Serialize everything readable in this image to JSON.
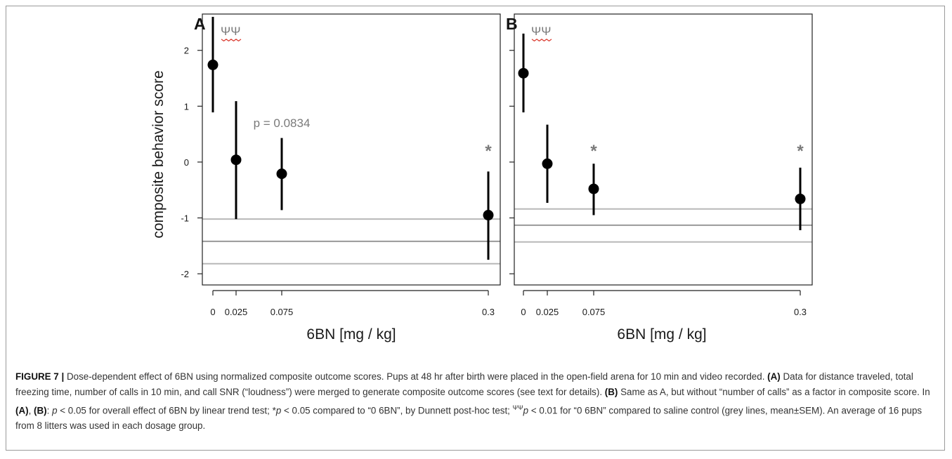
{
  "figure_label": "FIGURE 7 |",
  "caption": {
    "t1": " Dose-dependent effect of 6BN using normalized composite outcome scores. Pups at 48 hr after birth were placed in the open-field arena for 10 min and video recorded. ",
    "a1": "(A)",
    "t2": " Data for distance traveled, total freezing time, number of calls in 10 min, and call SNR (“loudness”) were merged to generate composite outcome scores (see text for details). ",
    "b1": "(B)",
    "t3": " Same as A, but without “number of calls” as a factor in composite score. In ",
    "a2": "(A)",
    "comma": ", ",
    "b2": "(B)",
    "t4": ": ",
    "p1": "p",
    "t5": " < 0.05 for overall effect of 6BN by linear trend test; *",
    "p2": "p",
    "t6": " < 0.05 compared to “0 6BN”, by Dunnett post-hoc test; ",
    "sup": "ΨΨ",
    "p3": "p",
    "t7": " < 0.01 for “0 6BN” compared to saline control (grey lines, mean±SEM). An average of 16 pups from 8 litters was used in each dosage group."
  },
  "chart_data": [
    {
      "type": "scatter",
      "panel_label": "A",
      "xlabel": "6BN [mg / kg]",
      "ylabel": "composite behavior score",
      "x_ticks": [
        0,
        0.025,
        0.075,
        0.3
      ],
      "x_tick_labels": [
        "0",
        "0.025",
        "0.075",
        "0.3"
      ],
      "y_ticks": [
        -2,
        -1,
        0,
        1,
        2
      ],
      "y_tick_labels": [
        "-2",
        "-1",
        "0",
        "1",
        "2"
      ],
      "ylim": [
        -2.2,
        2.65
      ],
      "points": [
        {
          "x": 0,
          "mean": 1.74,
          "lower": 0.89,
          "upper": 2.6
        },
        {
          "x": 0.025,
          "mean": 0.04,
          "lower": -1.02,
          "upper": 1.09
        },
        {
          "x": 0.075,
          "mean": -0.21,
          "lower": -0.86,
          "upper": 0.43
        },
        {
          "x": 0.3,
          "mean": -0.95,
          "lower": -1.75,
          "upper": -0.17
        }
      ],
      "saline_control": {
        "mean": -1.42,
        "lower": -1.82,
        "upper": -1.02
      },
      "annotations": [
        {
          "text": "ΨΨ",
          "x": 0,
          "y": 2.35
        },
        {
          "text": "p = 0.0834",
          "x": 0.075,
          "y": 0.7
        },
        {
          "text": "*",
          "x": 0.3,
          "y": 0.2
        }
      ],
      "colors": {
        "points": "#000000",
        "control_mean": "#999999",
        "control_sem": "#b8b8b8",
        "annotation": "#7a7a7a"
      }
    },
    {
      "type": "scatter",
      "panel_label": "B",
      "xlabel": "6BN [mg / kg]",
      "ylabel": "",
      "x_ticks": [
        0,
        0.025,
        0.075,
        0.3
      ],
      "x_tick_labels": [
        "0",
        "0.025",
        "0.075",
        "0.3"
      ],
      "y_ticks": [
        -2,
        -1,
        0,
        1,
        2
      ],
      "y_tick_labels": [],
      "ylim": [
        -2.2,
        2.65
      ],
      "points": [
        {
          "x": 0,
          "mean": 1.59,
          "lower": 0.89,
          "upper": 2.3
        },
        {
          "x": 0.025,
          "mean": -0.03,
          "lower": -0.73,
          "upper": 0.67
        },
        {
          "x": 0.075,
          "mean": -0.48,
          "lower": -0.95,
          "upper": -0.03
        },
        {
          "x": 0.3,
          "mean": -0.66,
          "lower": -1.22,
          "upper": -0.1
        }
      ],
      "saline_control": {
        "mean": -1.13,
        "lower": -1.43,
        "upper": -0.84
      },
      "annotations": [
        {
          "text": "ΨΨ",
          "x": 0,
          "y": 2.35
        },
        {
          "text": "*",
          "x": 0.075,
          "y": 0.2
        },
        {
          "text": "*",
          "x": 0.3,
          "y": 0.2
        }
      ],
      "colors": {
        "points": "#000000",
        "control_mean": "#999999",
        "control_sem": "#b8b8b8",
        "annotation": "#7a7a7a"
      }
    }
  ]
}
